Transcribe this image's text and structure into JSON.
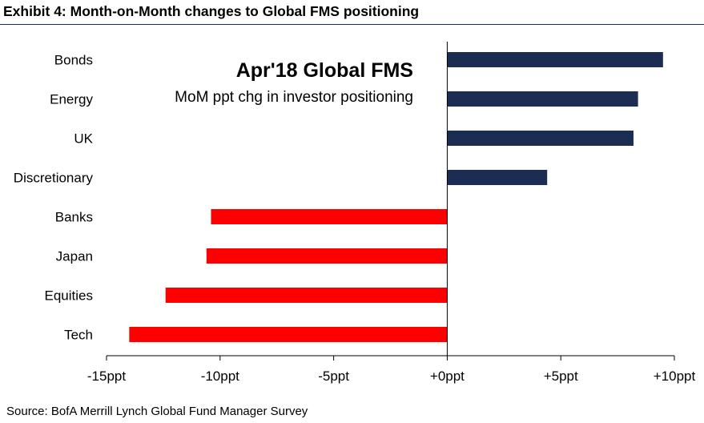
{
  "exhibit_title": "Exhibit 4: Month-on-Month changes to Global FMS positioning",
  "source": "Source: BofA Merrill Lynch Global Fund Manager Survey",
  "colors": {
    "positive": "#1b2d52",
    "negative": "#ff0000",
    "rule": "#1a2f55"
  },
  "chart_data": {
    "type": "bar",
    "orientation": "horizontal",
    "title": "Apr'18 Global FMS",
    "subtitle": "MoM ppt chg in investor positioning",
    "categories": [
      "Bonds",
      "Energy",
      "UK",
      "Discretionary",
      "Banks",
      "Japan",
      "Equities",
      "Tech"
    ],
    "values": [
      9.5,
      8.4,
      8.2,
      4.4,
      -10.4,
      -10.6,
      -12.4,
      -14.0
    ],
    "xlim": [
      -15,
      10
    ],
    "xticks": [
      -15,
      -10,
      -5,
      0,
      5,
      10
    ],
    "xtick_labels": [
      "-15ppt",
      "-10ppt",
      "-5ppt",
      "+0ppt",
      "+5ppt",
      "+10ppt"
    ],
    "xlabel": "",
    "ylabel": "",
    "grid": false
  }
}
